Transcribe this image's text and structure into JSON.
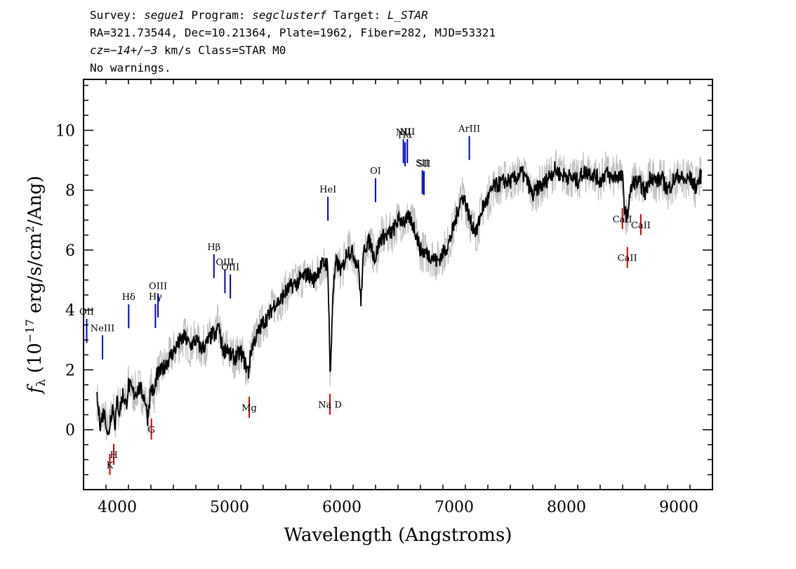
{
  "header": {
    "line1": {
      "survey_key": "Survey: ",
      "survey": "segue1",
      "program_key": " Program: ",
      "program": "segclusterf",
      "target_key": " Target: ",
      "target": "L_STAR"
    },
    "line2": "RA=321.73544, Dec=10.21364, Plate=1962, Fiber=282, MJD=53321",
    "line3": {
      "cz_key": "cz",
      "cz_value": "=−14+/−3",
      "rest": " km/s Class=STAR M0"
    },
    "line4": "No warnings."
  },
  "colors": {
    "flux": "#000000",
    "error_band": "#bfbfbf",
    "emission_line": "#0000cc",
    "absorption_line": "#cc0000"
  },
  "chart_data": {
    "type": "line",
    "title": "",
    "xlabel": "Wavelength (Angstroms)",
    "ylabel": "f_λ (10^-17 erg/s/cm²/Ang)",
    "xlim": [
      3700,
      9300
    ],
    "ylim": [
      -2.0,
      11.7
    ],
    "xticks": [
      4000,
      5000,
      6000,
      7000,
      8000,
      9000
    ],
    "yticks": [
      0,
      2,
      4,
      6,
      8,
      10
    ],
    "grid": false,
    "series": [
      {
        "x": [
          3820,
          3850,
          3880,
          3900,
          3920,
          3940,
          3960,
          3980,
          4000,
          4020,
          4050,
          4080,
          4100,
          4150,
          4200,
          4250,
          4270,
          4300,
          4330,
          4350,
          4400,
          4450,
          4500,
          4550,
          4600,
          4650,
          4700,
          4750,
          4800,
          4850,
          4880,
          4900,
          4920,
          4950,
          4980,
          5000,
          5050,
          5100,
          5150,
          5170,
          5180,
          5200,
          5250,
          5300,
          5350,
          5400,
          5450,
          5500,
          5550,
          5600,
          5650,
          5700,
          5750,
          5800,
          5850,
          5870,
          5880,
          5890,
          5895,
          5900,
          5920,
          5950,
          6000,
          6050,
          6100,
          6150,
          6170,
          6180,
          6200,
          6250,
          6280,
          6300,
          6320,
          6350,
          6400,
          6450,
          6500,
          6550,
          6563,
          6600,
          6650,
          6700,
          6750,
          6800,
          6850,
          6900,
          6950,
          7000,
          7050,
          7080,
          7100,
          7150,
          7200,
          7250,
          7300,
          7350,
          7400,
          7450,
          7500,
          7550,
          7600,
          7650,
          7700,
          7750,
          7800,
          7850,
          7900,
          7950,
          8000,
          8050,
          8100,
          8150,
          8200,
          8250,
          8300,
          8350,
          8400,
          8450,
          8498,
          8520,
          8542,
          8560,
          8600,
          8662,
          8700,
          8750,
          8800,
          8850,
          8900,
          8950,
          9000,
          9050,
          9100,
          9150,
          9200
        ],
        "y": [
          1.0,
          0.2,
          0.6,
          0.3,
          -0.3,
          0.4,
          0.8,
          0.2,
          1.0,
          0.6,
          1.2,
          0.8,
          1.5,
          1.2,
          1.4,
          1.0,
          0.4,
          1.4,
          1.2,
          1.8,
          2.0,
          2.3,
          2.6,
          2.9,
          3.1,
          2.8,
          3.0,
          2.7,
          2.9,
          3.2,
          3.1,
          3.6,
          3.0,
          2.6,
          2.8,
          2.5,
          2.4,
          2.6,
          2.1,
          1.9,
          2.3,
          2.8,
          3.2,
          3.6,
          3.8,
          4.2,
          4.3,
          4.6,
          4.8,
          4.9,
          5.1,
          5.2,
          5.0,
          5.4,
          5.6,
          5.5,
          4.8,
          3.0,
          2.0,
          1.9,
          4.6,
          5.6,
          5.3,
          6.0,
          5.9,
          5.4,
          4.2,
          5.0,
          6.1,
          6.3,
          5.9,
          5.7,
          6.1,
          6.4,
          6.5,
          6.6,
          7.0,
          7.0,
          6.9,
          7.1,
          6.7,
          6.0,
          5.9,
          5.8,
          5.6,
          5.9,
          6.2,
          6.8,
          7.6,
          7.8,
          7.6,
          6.9,
          6.6,
          7.4,
          7.7,
          8.1,
          8.2,
          8.3,
          8.3,
          8.4,
          8.6,
          8.3,
          7.8,
          8.1,
          8.2,
          8.5,
          8.7,
          8.5,
          8.5,
          8.4,
          8.3,
          8.6,
          8.6,
          8.5,
          8.3,
          8.6,
          8.4,
          8.5,
          8.4,
          7.3,
          7.1,
          7.8,
          8.3,
          8.2,
          7.9,
          8.5,
          8.3,
          8.4,
          8.0,
          8.3,
          8.5,
          8.3,
          8.4,
          8.1,
          8.5
        ]
      }
    ],
    "error_band_width": 0.4,
    "line_markers": [
      {
        "label": "OII",
        "x": 3728,
        "type": "emission"
      },
      {
        "label": "NeIII",
        "x": 3869,
        "type": "emission"
      },
      {
        "label": "Hδ",
        "x": 4102,
        "type": "emission"
      },
      {
        "label": "Hγ",
        "x": 4340,
        "type": "emission"
      },
      {
        "label": "OIII",
        "x": 4363,
        "type": "emission"
      },
      {
        "label": "Hβ",
        "x": 4861,
        "type": "emission"
      },
      {
        "label": "OIII",
        "x": 4959,
        "type": "emission"
      },
      {
        "label": "OIII",
        "x": 5007,
        "type": "emission"
      },
      {
        "label": "HeI",
        "x": 5876,
        "type": "emission"
      },
      {
        "label": "OI",
        "x": 6300,
        "type": "emission"
      },
      {
        "label": "NII",
        "x": 6548,
        "type": "emission"
      },
      {
        "label": "Hα",
        "x": 6563,
        "type": "emission"
      },
      {
        "label": "NII",
        "x": 6583,
        "type": "emission"
      },
      {
        "label": "SII",
        "x": 6717,
        "type": "emission"
      },
      {
        "label": "SII",
        "x": 6731,
        "type": "emission"
      },
      {
        "label": "ArIII",
        "x": 7135,
        "type": "emission"
      },
      {
        "label": "K",
        "x": 3934,
        "type": "absorption"
      },
      {
        "label": "H",
        "x": 3969,
        "type": "absorption"
      },
      {
        "label": "G",
        "x": 4304,
        "type": "absorption"
      },
      {
        "label": "Mg",
        "x": 5175,
        "type": "absorption"
      },
      {
        "label": "Na D",
        "x": 5894,
        "type": "absorption"
      },
      {
        "label": "CaII",
        "x": 8498,
        "type": "absorption"
      },
      {
        "label": "CaII",
        "x": 8542,
        "type": "absorption"
      },
      {
        "label": "CaII",
        "x": 8662,
        "type": "absorption"
      }
    ]
  }
}
